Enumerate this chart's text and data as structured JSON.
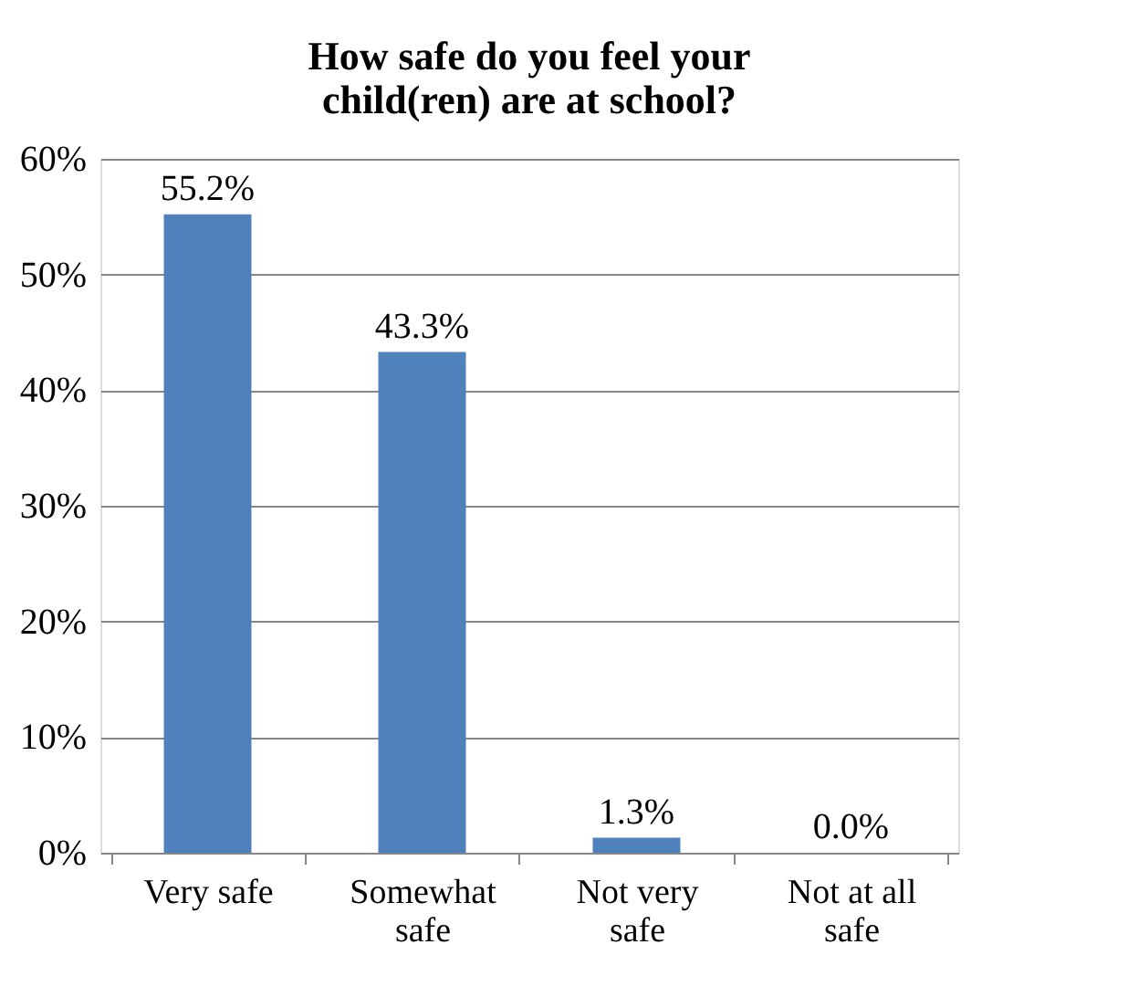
{
  "chart_data": {
    "type": "bar",
    "title": [
      "How safe do you feel your",
      "child(ren) are at school?"
    ],
    "categories": [
      "Very safe",
      "Somewhat safe",
      "Not very safe",
      "Not at all safe"
    ],
    "values": [
      55.2,
      43.3,
      1.3,
      0.0
    ],
    "color": "#4f81bd",
    "value_labels": [
      "55.2%",
      "43.3%",
      "1.3%",
      "0.0%"
    ],
    "ylim": [
      0,
      60
    ],
    "yticks": [
      {
        "value": 0,
        "label": "0%"
      },
      {
        "value": 10,
        "label": "10%"
      },
      {
        "value": 20,
        "label": "20%"
      },
      {
        "value": 30,
        "label": "30%"
      },
      {
        "value": 40,
        "label": "40%"
      },
      {
        "value": 50,
        "label": "50%"
      },
      {
        "value": 60,
        "label": "60%"
      }
    ],
    "grid": "y"
  }
}
